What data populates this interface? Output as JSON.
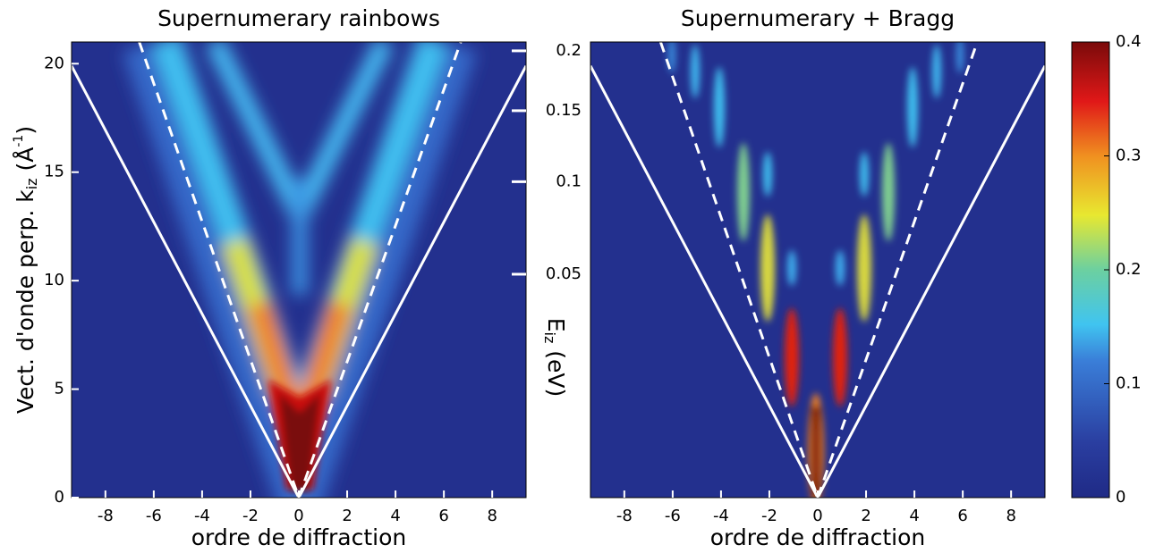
{
  "chart_data": [
    {
      "type": "heatmap",
      "title": "Supernumerary rainbows",
      "x_label": "ordre de diffraction",
      "y_label": [
        "Vect. d'onde perp. k",
        "iz",
        " (Å",
        "-1",
        ")"
      ],
      "xlim": [
        -9.4,
        9.4
      ],
      "xticks": [
        -8,
        -6,
        -4,
        -2,
        0,
        2,
        4,
        6,
        8
      ],
      "ylim": [
        0,
        21
      ],
      "yticks": [
        0,
        5,
        10,
        15,
        20
      ],
      "series": [
        {
          "color": "#ffffff",
          "style": "solid",
          "x": [
            -9.4,
            0,
            9.4
          ],
          "values": [
            19.9,
            0,
            19.9
          ]
        },
        {
          "color": "#ffffff",
          "style": "dashed",
          "x": [
            -6.6,
            0,
            6.7
          ],
          "values": [
            21,
            0,
            21
          ]
        }
      ]
    },
    {
      "type": "heatmap",
      "title": "Supernumerary + Bragg",
      "x_label": "ordre de diffraction",
      "y2_label": [
        "E",
        "iz",
        " (eV)"
      ],
      "xlim": [
        -9.4,
        9.4
      ],
      "xticks": [
        -8,
        -6,
        -4,
        -2,
        0,
        2,
        4,
        6,
        8
      ],
      "ylim": [
        0,
        21
      ],
      "y2lim": [
        0,
        0.208
      ],
      "y2scale": "sqrt",
      "y2ticks": [
        0.05,
        0.1,
        0.15,
        0.2
      ],
      "series": [
        {
          "color": "#ffffff",
          "style": "solid",
          "x": [
            -9.4,
            0,
            9.4
          ],
          "values": [
            19.9,
            0,
            19.9
          ]
        },
        {
          "color": "#ffffff",
          "style": "dashed",
          "x": [
            -6.5,
            0,
            6.6
          ],
          "values": [
            21,
            0,
            21
          ]
        }
      ],
      "colorbar": {
        "colormap": "jet",
        "lim": [
          0,
          0.4
        ],
        "ticks": [
          0,
          0.1,
          0.2,
          0.3,
          0.4
        ]
      }
    }
  ]
}
